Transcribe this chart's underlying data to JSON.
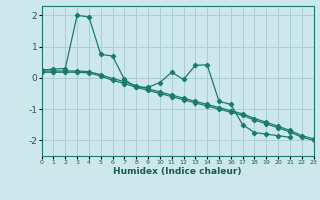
{
  "xlabel": "Humidex (Indice chaleur)",
  "ylabel": "",
  "bg_color": "#cce8ec",
  "grid_color": "#aacdd4",
  "line_color": "#1a7a6e",
  "x_min": 0,
  "x_max": 23,
  "y_min": -2.5,
  "y_max": 2.3,
  "yticks": [
    -2,
    -1,
    0,
    1,
    2
  ],
  "series": [
    {
      "x": [
        0,
        1,
        2,
        3,
        4,
        5,
        6,
        7,
        8,
        9,
        10,
        11,
        12,
        13,
        14,
        15,
        16,
        17,
        18,
        19,
        20,
        21
      ],
      "y": [
        0.25,
        0.28,
        0.3,
        2.0,
        1.95,
        0.75,
        0.7,
        -0.05,
        -0.3,
        -0.3,
        -0.15,
        0.18,
        -0.05,
        0.4,
        0.42,
        -0.75,
        -0.85,
        -1.5,
        -1.75,
        -1.8,
        -1.85,
        -1.9
      ]
    },
    {
      "x": [
        0,
        1,
        2,
        3,
        4,
        5,
        6,
        7,
        8,
        9,
        10,
        11,
        12,
        13,
        14,
        15,
        16,
        17,
        18,
        19,
        20,
        21,
        22,
        23
      ],
      "y": [
        0.22,
        0.22,
        0.22,
        0.22,
        0.2,
        0.1,
        -0.02,
        -0.12,
        -0.25,
        -0.35,
        -0.45,
        -0.55,
        -0.65,
        -0.75,
        -0.85,
        -0.95,
        -1.05,
        -1.15,
        -1.3,
        -1.42,
        -1.55,
        -1.68,
        -1.85,
        -1.95
      ]
    },
    {
      "x": [
        0,
        1,
        2,
        3,
        4,
        5,
        6,
        7,
        8,
        9,
        10,
        11,
        12,
        13,
        14,
        15,
        16,
        17,
        18,
        19,
        20,
        21,
        22,
        23
      ],
      "y": [
        0.18,
        0.18,
        0.18,
        0.18,
        0.16,
        0.06,
        -0.08,
        -0.18,
        -0.3,
        -0.4,
        -0.5,
        -0.6,
        -0.7,
        -0.8,
        -0.9,
        -1.0,
        -1.1,
        -1.2,
        -1.35,
        -1.47,
        -1.6,
        -1.73,
        -1.9,
        -2.0
      ]
    }
  ]
}
